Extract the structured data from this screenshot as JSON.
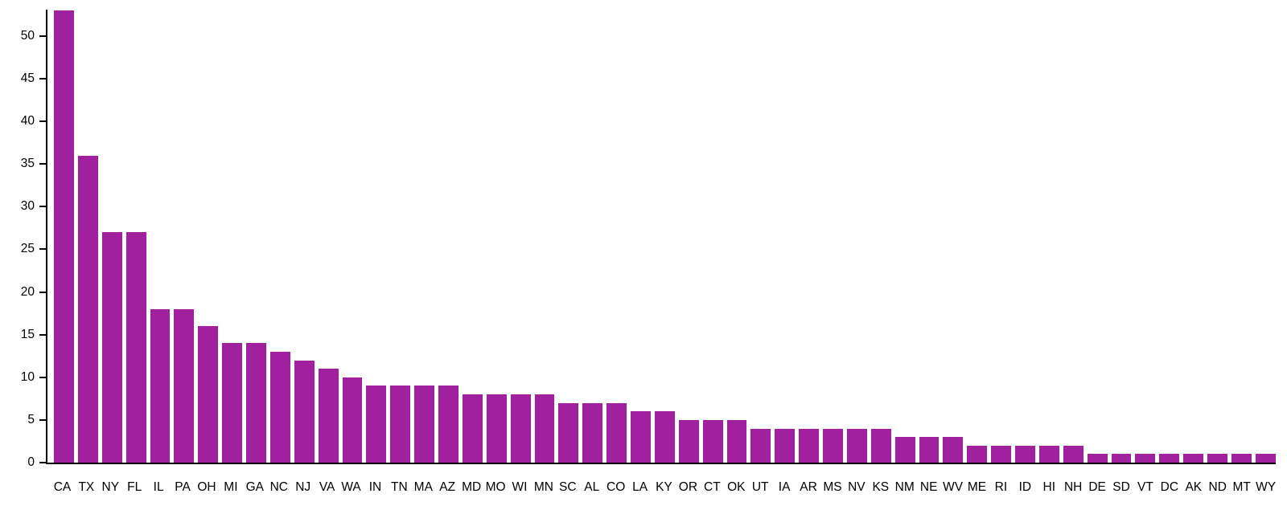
{
  "chart_data": {
    "type": "bar",
    "title": "",
    "xlabel": "",
    "ylabel": "",
    "categories": [
      "CA",
      "TX",
      "NY",
      "FL",
      "IL",
      "PA",
      "OH",
      "MI",
      "GA",
      "NC",
      "NJ",
      "VA",
      "WA",
      "IN",
      "TN",
      "MA",
      "AZ",
      "MD",
      "MO",
      "WI",
      "MN",
      "SC",
      "AL",
      "CO",
      "LA",
      "KY",
      "OR",
      "CT",
      "OK",
      "UT",
      "IA",
      "AR",
      "MS",
      "NV",
      "KS",
      "NM",
      "NE",
      "WV",
      "ME",
      "RI",
      "ID",
      "HI",
      "NH",
      "DE",
      "SD",
      "VT",
      "DC",
      "AK",
      "ND",
      "MT",
      "WY"
    ],
    "values": [
      53,
      36,
      27,
      27,
      18,
      18,
      16,
      14,
      14,
      13,
      12,
      11,
      10,
      9,
      9,
      9,
      9,
      8,
      8,
      8,
      8,
      7,
      7,
      7,
      6,
      6,
      5,
      5,
      5,
      4,
      4,
      4,
      4,
      4,
      4,
      3,
      3,
      3,
      2,
      2,
      2,
      2,
      2,
      1,
      1,
      1,
      1,
      1,
      1,
      1,
      1
    ],
    "ylim": [
      0,
      53.1
    ],
    "yticks": [
      0,
      5,
      10,
      15,
      20,
      25,
      30,
      35,
      40,
      45,
      50
    ],
    "grid": false,
    "legend": "none",
    "bar_color": "#a020a0",
    "axis_color": "#000000",
    "background_color": "#ffffff"
  }
}
